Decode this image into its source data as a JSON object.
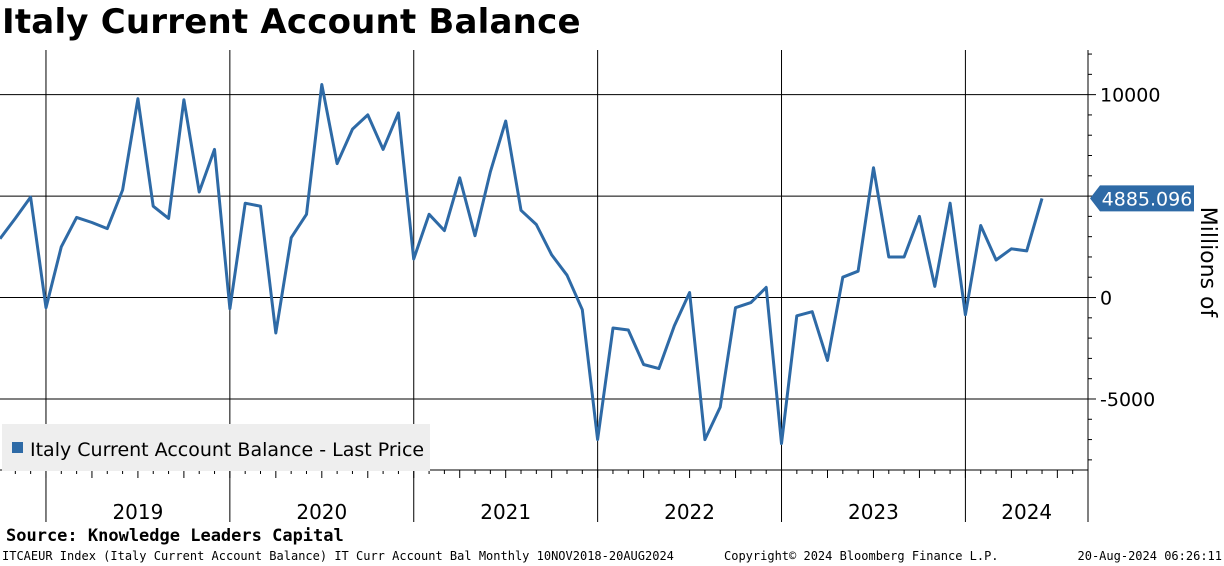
{
  "title": "Italy Current Account Balance",
  "footer": {
    "source": "Source: Knowledge Leaders Capital",
    "description": "ITCAEUR Index (Italy Current Account Balance) IT Curr Account Bal  Monthly 10NOV2018-20AUG2024",
    "copyright": "Copyright© 2024 Bloomberg Finance L.P.",
    "timestamp": "20-Aug-2024 06:26:11"
  },
  "chart_data": {
    "type": "line",
    "ylabel": "Millions of",
    "ylim": [
      -8500,
      12200
    ],
    "yticks": [
      10000,
      5000,
      0,
      -5000
    ],
    "ytick_labels": [
      "10000",
      "5000",
      "0",
      "-5000"
    ],
    "xlim": [
      "2018-10",
      "2024-09"
    ],
    "year_labels": [
      "2019",
      "2020",
      "2021",
      "2022",
      "2023",
      "2024"
    ],
    "grid": true,
    "legend": {
      "position": "bottom-left",
      "label": "Italy Current Account Balance - Last Price"
    },
    "last_value": 4885.096,
    "last_value_label": "4885.096",
    "colors": {
      "line": "#2e6aa6",
      "badge": "#2e6aa6",
      "legend_bg": "#eeeeee"
    },
    "series": [
      {
        "name": "Italy Current Account Balance - Last Price",
        "x": [
          "2018-11",
          "2018-12",
          "2019-01",
          "2019-02",
          "2019-03",
          "2019-04",
          "2019-05",
          "2019-06",
          "2019-07",
          "2019-08",
          "2019-09",
          "2019-10",
          "2019-11",
          "2019-12",
          "2020-01",
          "2020-02",
          "2020-03",
          "2020-04",
          "2020-05",
          "2020-06",
          "2020-07",
          "2020-08",
          "2020-09",
          "2020-10",
          "2020-11",
          "2020-12",
          "2021-01",
          "2021-02",
          "2021-03",
          "2021-04",
          "2021-05",
          "2021-06",
          "2021-07",
          "2021-08",
          "2021-09",
          "2021-10",
          "2021-11",
          "2021-12",
          "2022-01",
          "2022-02",
          "2022-03",
          "2022-04",
          "2022-05",
          "2022-06",
          "2022-07",
          "2022-08",
          "2022-09",
          "2022-10",
          "2022-11",
          "2022-12",
          "2023-01",
          "2023-02",
          "2023-03",
          "2023-04",
          "2023-05",
          "2023-06",
          "2023-07",
          "2023-08",
          "2023-09",
          "2023-10",
          "2023-11",
          "2023-12",
          "2024-01",
          "2024-02",
          "2024-03",
          "2024-04",
          "2024-05",
          "2024-06"
        ],
        "values": [
          3900,
          4950,
          -500,
          2500,
          3950,
          3700,
          3400,
          5300,
          9800,
          4500,
          3900,
          9750,
          5200,
          7300,
          -550,
          4650,
          4500,
          -1750,
          2950,
          4100,
          10500,
          6600,
          8300,
          9000,
          7300,
          9100,
          1900,
          4100,
          3300,
          5900,
          3050,
          6200,
          8700,
          4300,
          3600,
          2100,
          1100,
          -600,
          -7000,
          -1500,
          -1600,
          -3300,
          -3500,
          -1400,
          250,
          -7000,
          -5400,
          -500,
          -250,
          500,
          -7200,
          -900,
          -700,
          -3100,
          1000,
          1300,
          6400,
          2000,
          2000,
          4000,
          550,
          4650,
          -850,
          3550,
          1850,
          2400,
          2300,
          4885.096
        ]
      }
    ]
  }
}
